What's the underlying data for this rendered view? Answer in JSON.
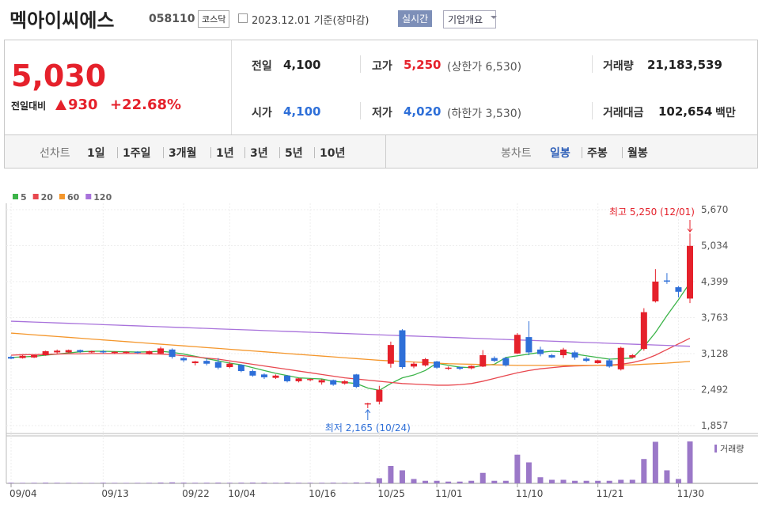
{
  "header": {
    "name": "멕아이씨에스",
    "code": "058110",
    "market": "코스닥",
    "date": "2023.12.01 기준(장마감)",
    "realtime": "실시간",
    "company_info": "기업개요"
  },
  "quote": {
    "price": "5,030",
    "change_label": "전일대비",
    "change": "930",
    "change_rate": "+22.68%"
  },
  "stats": [
    {
      "label": "전일",
      "value": "4,100"
    },
    {
      "label": "고가",
      "value": "5,250",
      "note": "(상한가 6,530)"
    },
    {
      "label": "거래량",
      "value": "21,183,539"
    },
    {
      "label": "시가",
      "value": "4,100"
    },
    {
      "label": "저가",
      "value": "4,020",
      "note": "(하한가 3,530)"
    },
    {
      "label": "거래대금",
      "value": "102,654",
      "unit": "백만"
    }
  ],
  "tabs": {
    "line_chart": "선차트",
    "periods": [
      "1일",
      "1주일",
      "3개월",
      "1년",
      "3년",
      "5년",
      "10년"
    ],
    "candle_chart": "봉차트",
    "candle_periods": [
      "일봉",
      "주봉",
      "월봉"
    ]
  },
  "chart_data": {
    "type": "candlestick",
    "categories": [
      "09/04",
      null,
      null,
      null,
      null,
      null,
      null,
      null,
      "09/13",
      null,
      null,
      null,
      null,
      null,
      null,
      "09/22",
      null,
      null,
      null,
      "10/04",
      null,
      null,
      null,
      null,
      null,
      null,
      "10/16",
      null,
      null,
      null,
      null,
      null,
      "10/25",
      null,
      null,
      null,
      null,
      "11/01",
      null,
      null,
      null,
      null,
      null,
      null,
      "11/10",
      null,
      null,
      null,
      null,
      null,
      null,
      "11/21",
      null,
      null,
      null,
      null,
      null,
      null,
      "11/30",
      null
    ],
    "open": [
      3070,
      3050,
      3060,
      3100,
      3150,
      3150,
      3190,
      3150,
      3170,
      3140,
      3140,
      3160,
      3120,
      3130,
      3200,
      3050,
      2960,
      3000,
      2980,
      2890,
      2930,
      2820,
      2760,
      2700,
      2740,
      2640,
      2660,
      2620,
      2660,
      2600,
      2760,
      2230,
      2280,
      2950,
      3540,
      2900,
      2920,
      2990,
      2860,
      2890,
      2870,
      2900,
      3050,
      3050,
      3130,
      3420,
      3200,
      3100,
      3100,
      3150,
      3040,
      2960,
      3010,
      2850,
      3060,
      3210,
      4050,
      4420,
      4300,
      4100
    ],
    "high": [
      3090,
      3100,
      3110,
      3180,
      3200,
      3200,
      3200,
      3180,
      3190,
      3170,
      3170,
      3170,
      3180,
      3250,
      3220,
      3070,
      3000,
      3050,
      3050,
      2980,
      2940,
      2850,
      2780,
      2760,
      2750,
      2700,
      2690,
      2680,
      2670,
      2660,
      2770,
      2260,
      2560,
      3340,
      3560,
      2980,
      3050,
      3000,
      2900,
      2900,
      2920,
      3190,
      3080,
      3070,
      3490,
      3700,
      3250,
      3120,
      3230,
      3180,
      3070,
      3020,
      3040,
      3250,
      3120,
      3930,
      4620,
      4550,
      4320,
      5250
    ],
    "low": [
      3030,
      3040,
      3050,
      3090,
      3130,
      3140,
      3140,
      3140,
      3130,
      3120,
      3130,
      3120,
      3110,
      3120,
      3040,
      2980,
      2920,
      2920,
      2850,
      2870,
      2800,
      2720,
      2680,
      2680,
      2620,
      2620,
      2640,
      2580,
      2560,
      2580,
      2520,
      2165,
      2230,
      2880,
      2860,
      2870,
      2900,
      2860,
      2840,
      2840,
      2850,
      2890,
      2980,
      2900,
      3120,
      3100,
      3080,
      3050,
      3050,
      3020,
      2980,
      2950,
      2880,
      2830,
      3050,
      3180,
      4030,
      4360,
      4120,
      4020
    ],
    "close": [
      3040,
      3090,
      3100,
      3170,
      3180,
      3190,
      3160,
      3170,
      3150,
      3160,
      3160,
      3140,
      3170,
      3220,
      3070,
      3010,
      2990,
      2950,
      2880,
      2950,
      2820,
      2740,
      2710,
      2740,
      2640,
      2690,
      2680,
      2660,
      2580,
      2640,
      2540,
      2250,
      2490,
      3280,
      2890,
      2950,
      3030,
      2880,
      2880,
      2860,
      2910,
      3100,
      3000,
      2920,
      3460,
      3150,
      3120,
      3060,
      3200,
      3060,
      3000,
      3010,
      2900,
      3230,
      3100,
      3860,
      4400,
      4400,
      4220,
      5030
    ],
    "up_color": "#e5212b",
    "down_color": "#2e6fd8",
    "series": [
      {
        "name": "5",
        "color": "#3cb449",
        "values": [
          3060,
          3070,
          3080,
          3100,
          3120,
          3140,
          3160,
          3170,
          3170,
          3165,
          3160,
          3155,
          3160,
          3170,
          3150,
          3120,
          3080,
          3040,
          3000,
          2960,
          2930,
          2880,
          2830,
          2780,
          2740,
          2700,
          2690,
          2680,
          2640,
          2620,
          2600,
          2520,
          2480,
          2600,
          2700,
          2750,
          2830,
          2960,
          2920,
          2890,
          2880,
          2920,
          2940,
          3060,
          3090,
          3120,
          3150,
          3170,
          3160,
          3120,
          3090,
          3060,
          3030,
          3040,
          3050,
          3250,
          3500,
          3800,
          4080,
          4380
        ]
      },
      {
        "name": "20",
        "color": "#e8484f",
        "values": [
          3100,
          3110,
          3110,
          3115,
          3120,
          3125,
          3125,
          3130,
          3130,
          3130,
          3130,
          3130,
          3125,
          3120,
          3110,
          3090,
          3070,
          3050,
          3030,
          3000,
          2970,
          2940,
          2910,
          2880,
          2850,
          2820,
          2790,
          2760,
          2730,
          2700,
          2680,
          2660,
          2640,
          2620,
          2600,
          2590,
          2580,
          2570,
          2570,
          2580,
          2600,
          2640,
          2690,
          2740,
          2790,
          2830,
          2860,
          2880,
          2900,
          2910,
          2915,
          2920,
          2925,
          2940,
          2970,
          3020,
          3100,
          3200,
          3300,
          3400
        ]
      },
      {
        "name": "60",
        "color": "#f4962b",
        "values": [
          3490,
          3475,
          3460,
          3445,
          3430,
          3415,
          3400,
          3385,
          3370,
          3355,
          3340,
          3325,
          3310,
          3295,
          3280,
          3265,
          3250,
          3235,
          3220,
          3205,
          3190,
          3175,
          3160,
          3145,
          3130,
          3115,
          3100,
          3085,
          3070,
          3055,
          3040,
          3025,
          3010,
          3000,
          2990,
          2980,
          2970,
          2960,
          2950,
          2945,
          2940,
          2935,
          2930,
          2925,
          2920,
          2920,
          2920,
          2920,
          2920,
          2920,
          2920,
          2920,
          2920,
          2925,
          2930,
          2940,
          2950,
          2960,
          2975,
          2990
        ]
      },
      {
        "name": "120",
        "color": "#a872db",
        "values": [
          3700,
          3693,
          3685,
          3678,
          3670,
          3663,
          3655,
          3648,
          3640,
          3633,
          3625,
          3618,
          3610,
          3603,
          3595,
          3588,
          3580,
          3573,
          3565,
          3558,
          3550,
          3543,
          3535,
          3528,
          3520,
          3513,
          3505,
          3498,
          3490,
          3483,
          3475,
          3468,
          3460,
          3453,
          3445,
          3438,
          3430,
          3423,
          3415,
          3408,
          3400,
          3393,
          3385,
          3378,
          3370,
          3363,
          3355,
          3348,
          3340,
          3333,
          3325,
          3318,
          3310,
          3303,
          3295,
          3288,
          3280,
          3273,
          3265,
          3258
        ]
      }
    ],
    "volume": {
      "name": "거래량",
      "color": "#9b78c8",
      "values": [
        300000,
        250000,
        280000,
        350000,
        300000,
        260000,
        240000,
        220000,
        300000,
        250000,
        230000,
        260000,
        280000,
        400000,
        500000,
        350000,
        300000,
        320000,
        380000,
        300000,
        350000,
        400000,
        380000,
        300000,
        420000,
        300000,
        280000,
        300000,
        350000,
        300000,
        450000,
        500000,
        2600000,
        8800000,
        6600000,
        2200000,
        1300000,
        1300000,
        900000,
        900000,
        1300000,
        5300000,
        1300000,
        1300000,
        14500000,
        10600000,
        3100000,
        1800000,
        1800000,
        1300000,
        1300000,
        1300000,
        1300000,
        1800000,
        1800000,
        12300000,
        21000000,
        6600000,
        2200000,
        21183539
      ]
    },
    "ylim": [
      1857,
      5670
    ],
    "yticks": [
      {
        "value": 5670,
        "label": "5,670"
      },
      {
        "value": 5034,
        "label": "5,034"
      },
      {
        "value": 4399,
        "label": "4,399"
      },
      {
        "value": 3763,
        "label": "3,763"
      },
      {
        "value": 3128,
        "label": "3,128"
      },
      {
        "value": 2492,
        "label": "2,492"
      },
      {
        "value": 1857,
        "label": "1,857"
      }
    ],
    "annotations": {
      "high": "최고 5,250 (12/01)",
      "low": "최저 2,165 (10/24)"
    }
  }
}
